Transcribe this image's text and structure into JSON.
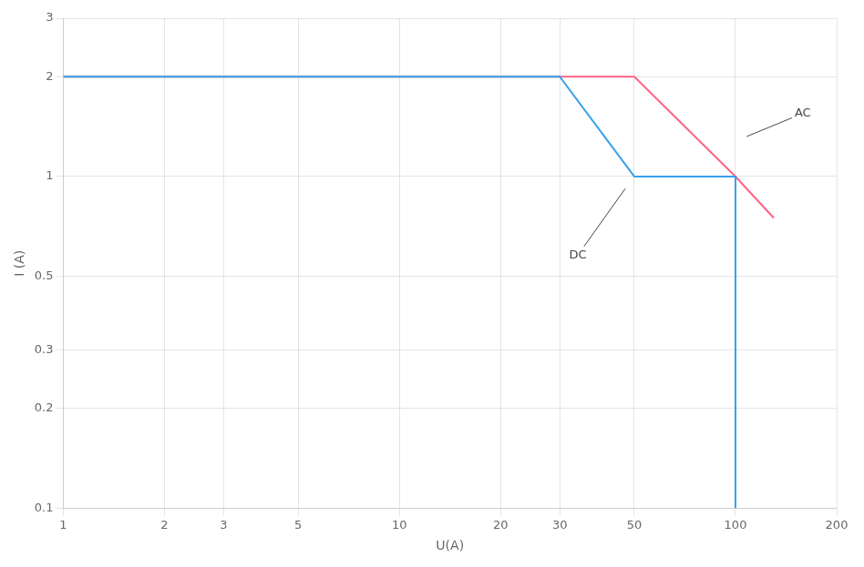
{
  "chart_data": {
    "type": "line",
    "xlabel": "U(A)",
    "ylabel": "I (A)",
    "log": true,
    "grid": true,
    "xlim": [
      1,
      200
    ],
    "ylim": [
      0.1,
      3
    ],
    "xticks": [
      1,
      2,
      3,
      5,
      10,
      20,
      30,
      50,
      100,
      200
    ],
    "yticks": [
      0.1,
      0.2,
      0.3,
      0.5,
      1,
      2,
      3
    ],
    "series": [
      {
        "x": [
          1,
          30,
          50,
          100,
          100
        ],
        "values": [
          2,
          2,
          1,
          1,
          0.1
        ]
      },
      {
        "x": [
          1,
          50,
          100,
          130
        ],
        "values": [
          2,
          2,
          1,
          0.75
        ]
      }
    ],
    "annotations": [
      {
        "text": "DC",
        "x": 32,
        "y": 0.58,
        "arrow_x": 47,
        "arrow_y": 0.92
      },
      {
        "text": "AC",
        "x": 150,
        "y": 1.55,
        "arrow_x": 108,
        "arrow_y": 1.32
      }
    ]
  }
}
